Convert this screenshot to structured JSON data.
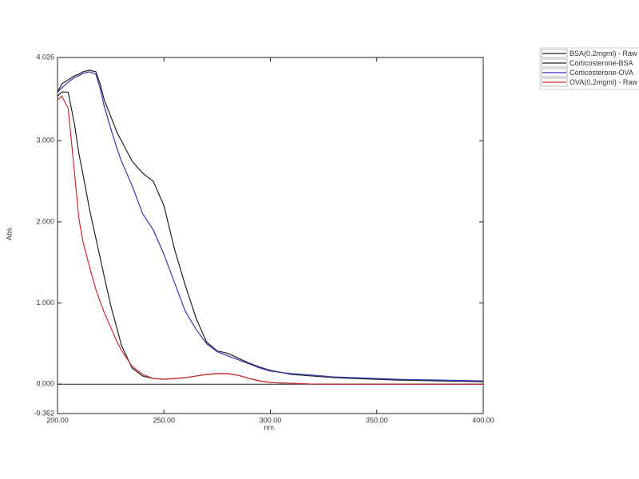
{
  "chart_data": {
    "type": "line",
    "xlabel": "nm.",
    "ylabel": "Abs.",
    "x": [
      200,
      202,
      205,
      208,
      210,
      212,
      215,
      218,
      220,
      222,
      225,
      228,
      230,
      235,
      240,
      245,
      250,
      255,
      260,
      265,
      270,
      275,
      280,
      285,
      290,
      295,
      300,
      310,
      320,
      330,
      340,
      350,
      360,
      380,
      400
    ],
    "series": [
      {
        "name": "BSA(0.2mgml) - Raw",
        "color": "#222222",
        "values": [
          3.55,
          3.6,
          3.6,
          3.2,
          2.85,
          2.58,
          2.16,
          1.8,
          1.56,
          1.32,
          0.97,
          0.68,
          0.48,
          0.2,
          0.1,
          0.07,
          0.06,
          0.07,
          0.08,
          0.1,
          0.12,
          0.13,
          0.13,
          0.11,
          0.07,
          0.04,
          0.02,
          0.01,
          0,
          0,
          0,
          0,
          0,
          0,
          0
        ]
      },
      {
        "name": "Corticosterone-BSA",
        "color": "#222222",
        "values": [
          3.6,
          3.7,
          3.75,
          3.8,
          3.82,
          3.85,
          3.87,
          3.85,
          3.7,
          3.5,
          3.3,
          3.1,
          3.0,
          2.75,
          2.6,
          2.5,
          2.2,
          1.66,
          1.22,
          0.82,
          0.52,
          0.41,
          0.38,
          0.32,
          0.26,
          0.21,
          0.17,
          0.12,
          0.1,
          0.08,
          0.07,
          0.06,
          0.05,
          0.04,
          0.03
        ]
      },
      {
        "name": "Corticosterone-OVA",
        "color": "#3535b8",
        "values": [
          3.6,
          3.65,
          3.72,
          3.78,
          3.8,
          3.83,
          3.85,
          3.82,
          3.65,
          3.42,
          3.15,
          2.9,
          2.75,
          2.45,
          2.1,
          1.9,
          1.6,
          1.25,
          0.9,
          0.68,
          0.5,
          0.4,
          0.35,
          0.3,
          0.25,
          0.2,
          0.16,
          0.13,
          0.11,
          0.09,
          0.08,
          0.07,
          0.06,
          0.05,
          0.04
        ]
      },
      {
        "name": "OVA(0.2mgml) - Raw",
        "color": "#d42a2a",
        "values": [
          3.5,
          3.55,
          3.4,
          2.6,
          2.05,
          1.75,
          1.45,
          1.17,
          1.02,
          0.88,
          0.7,
          0.52,
          0.42,
          0.22,
          0.12,
          0.07,
          0.06,
          0.07,
          0.08,
          0.1,
          0.12,
          0.13,
          0.13,
          0.11,
          0.07,
          0.04,
          0.02,
          0.01,
          0,
          0,
          0,
          0,
          0,
          0,
          0
        ]
      }
    ],
    "xlim": [
      200,
      400
    ],
    "xticks": [
      {
        "value": 200,
        "label": "200.00"
      },
      {
        "value": 250,
        "label": "250.00"
      },
      {
        "value": 300,
        "label": "300.00"
      },
      {
        "value": 350,
        "label": "350.00"
      },
      {
        "value": 400,
        "label": "400.00"
      }
    ],
    "ylim": [
      -0.362,
      4.026
    ],
    "yticks": [
      -0.362,
      {
        "value": 0,
        "label": "0.000"
      },
      {
        "value": 1,
        "label": "1.000"
      },
      {
        "value": 2,
        "label": "2.000"
      },
      {
        "value": 3,
        "label": "3.000"
      },
      4.026
    ],
    "grid": false,
    "legend": "top-right"
  }
}
